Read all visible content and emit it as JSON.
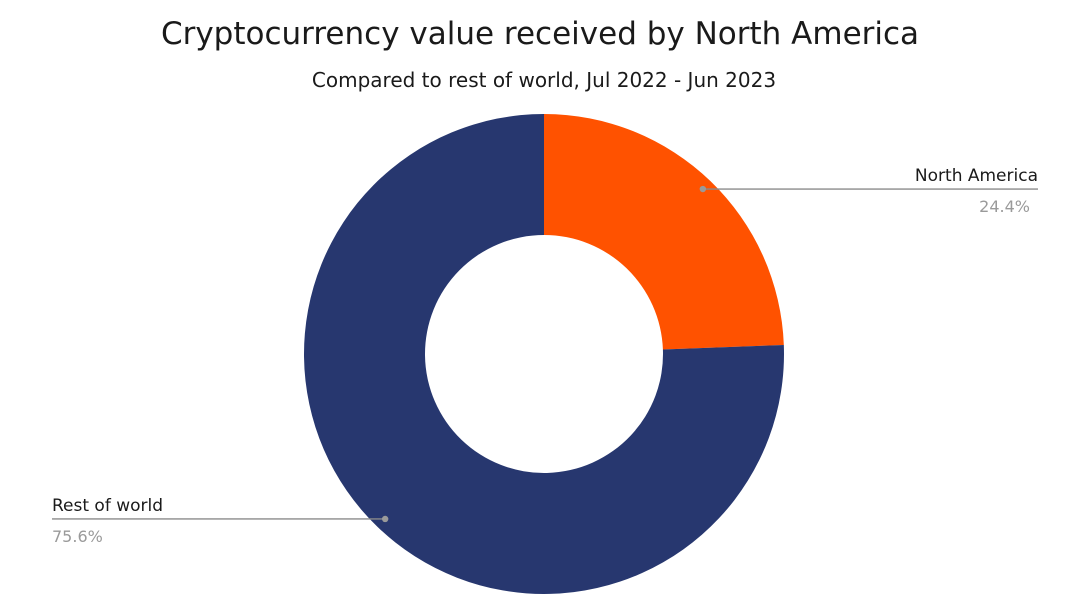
{
  "chart_data": {
    "type": "pie",
    "title": "Cryptocurrency value received by North America",
    "subtitle": "Compared to rest of world, Jul 2022 - Jun 2023",
    "categories": [
      "North America",
      "Rest of world"
    ],
    "values": [
      24.4,
      75.6
    ],
    "value_labels": [
      "24.4%",
      "75.6%"
    ],
    "colors": [
      "#ff5200",
      "#27376f"
    ],
    "donut": true
  }
}
